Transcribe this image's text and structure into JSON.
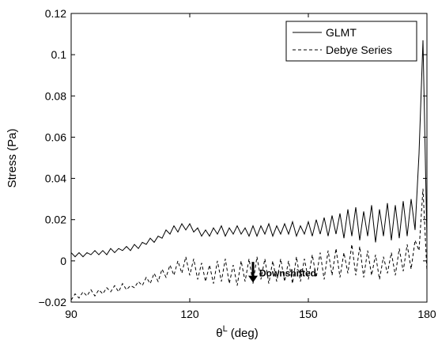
{
  "chart_data": {
    "type": "line",
    "xlabel": {
      "symbol": "θ",
      "superscript": "L",
      "unit": "(deg)"
    },
    "ylabel": "Stress (Pa)",
    "annotation": "Downshifted",
    "x": [
      90,
      91,
      92,
      93,
      94,
      95,
      96,
      97,
      98,
      99,
      100,
      101,
      102,
      103,
      104,
      105,
      106,
      107,
      108,
      109,
      110,
      111,
      112,
      113,
      114,
      115,
      116,
      117,
      118,
      119,
      120,
      121,
      122,
      123,
      124,
      125,
      126,
      127,
      128,
      129,
      130,
      131,
      132,
      133,
      134,
      135,
      136,
      137,
      138,
      139,
      140,
      141,
      142,
      143,
      144,
      145,
      146,
      147,
      148,
      149,
      150,
      151,
      152,
      153,
      154,
      155,
      156,
      157,
      158,
      159,
      160,
      161,
      162,
      163,
      164,
      165,
      166,
      167,
      168,
      169,
      170,
      171,
      172,
      173,
      174,
      175,
      176,
      177,
      178,
      179,
      180
    ],
    "series": [
      {
        "name": "GLMT",
        "color": "#000000",
        "dash": "solid",
        "values": [
          0.004,
          0.002,
          0.004,
          0.002,
          0.004,
          0.003,
          0.005,
          0.003,
          0.005,
          0.003,
          0.006,
          0.004,
          0.006,
          0.005,
          0.007,
          0.005,
          0.008,
          0.006,
          0.009,
          0.008,
          0.011,
          0.009,
          0.012,
          0.011,
          0.015,
          0.013,
          0.017,
          0.014,
          0.018,
          0.015,
          0.018,
          0.014,
          0.016,
          0.012,
          0.015,
          0.012,
          0.016,
          0.013,
          0.017,
          0.012,
          0.016,
          0.013,
          0.017,
          0.013,
          0.016,
          0.012,
          0.017,
          0.012,
          0.017,
          0.013,
          0.018,
          0.012,
          0.017,
          0.013,
          0.018,
          0.013,
          0.019,
          0.012,
          0.017,
          0.013,
          0.019,
          0.012,
          0.02,
          0.013,
          0.021,
          0.012,
          0.022,
          0.013,
          0.023,
          0.011,
          0.025,
          0.012,
          0.026,
          0.01,
          0.024,
          0.012,
          0.027,
          0.009,
          0.025,
          0.012,
          0.028,
          0.01,
          0.027,
          0.011,
          0.029,
          0.012,
          0.03,
          0.015,
          0.052,
          0.107,
          0.01
        ]
      },
      {
        "name": "Debye Series",
        "color": "#000000",
        "dash": "dashed",
        "values": [
          -0.019,
          -0.016,
          -0.018,
          -0.015,
          -0.017,
          -0.014,
          -0.017,
          -0.014,
          -0.016,
          -0.013,
          -0.015,
          -0.012,
          -0.015,
          -0.011,
          -0.014,
          -0.012,
          -0.013,
          -0.01,
          -0.012,
          -0.008,
          -0.011,
          -0.006,
          -0.01,
          -0.004,
          -0.008,
          -0.002,
          -0.007,
          0.0,
          -0.006,
          0.002,
          -0.007,
          0.001,
          -0.009,
          -0.001,
          -0.01,
          -0.002,
          -0.011,
          0.0,
          -0.01,
          0.001,
          -0.011,
          -0.002,
          -0.012,
          0.0,
          -0.01,
          0.001,
          -0.011,
          0.002,
          -0.009,
          0.001,
          -0.011,
          0.0,
          -0.01,
          0.001,
          -0.01,
          0.0,
          -0.011,
          0.002,
          -0.01,
          0.001,
          -0.009,
          0.003,
          -0.008,
          0.004,
          -0.009,
          0.005,
          -0.007,
          0.006,
          -0.008,
          0.004,
          -0.006,
          0.008,
          -0.007,
          0.007,
          -0.008,
          0.005,
          -0.007,
          0.003,
          -0.009,
          0.002,
          -0.006,
          0.004,
          -0.007,
          0.006,
          -0.005,
          0.008,
          -0.004,
          0.01,
          0.005,
          0.035,
          -0.005
        ]
      }
    ],
    "xlim": [
      90,
      180
    ],
    "xticks": [
      90,
      120,
      150,
      180
    ],
    "ylim": [
      -0.02,
      0.12
    ],
    "yticks": [
      {
        "value": -0.02,
        "label": "−0.02"
      },
      0,
      0.02,
      0.04,
      0.06,
      0.08,
      0.1,
      0.12
    ],
    "legend": "upper right",
    "grid": false
  }
}
